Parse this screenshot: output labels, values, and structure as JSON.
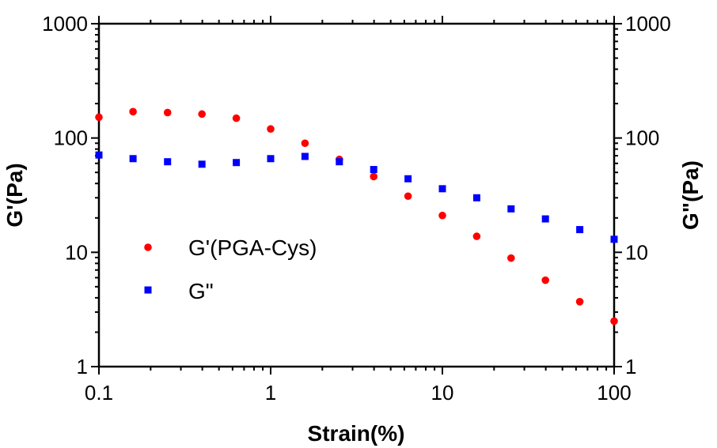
{
  "chart_data": {
    "type": "scatter",
    "xlabel": "Strain(%)",
    "ylabel": "G'(Pa)",
    "ylabel_right": "G\"(Pa)",
    "xscale": "log",
    "yscale": "log",
    "xlim": [
      0.1,
      100
    ],
    "ylim": [
      1,
      1000
    ],
    "x_ticks": [
      "0.1",
      "1",
      "10",
      "100"
    ],
    "y_ticks": [
      "1",
      "10",
      "100",
      "1000"
    ],
    "y_right_ticks": [
      "1",
      "10",
      "100",
      "1000"
    ],
    "grid": false,
    "legend_position": "left-middle",
    "series": [
      {
        "name": "G'(PGA-Cys)",
        "marker": "circle",
        "color": "#ff0000",
        "x": [
          0.1,
          0.158,
          0.251,
          0.398,
          0.631,
          1.0,
          1.585,
          2.512,
          3.981,
          6.31,
          10.0,
          15.85,
          25.12,
          39.81,
          63.1,
          100.0
        ],
        "y": [
          152,
          170,
          167,
          162,
          149,
          120,
          90,
          65,
          46,
          31,
          21,
          13.8,
          8.9,
          5.7,
          3.7,
          2.5
        ]
      },
      {
        "name": "G\"",
        "marker": "square",
        "color": "#0000ff",
        "x": [
          0.1,
          0.158,
          0.251,
          0.398,
          0.631,
          1.0,
          1.585,
          2.512,
          3.981,
          6.31,
          10.0,
          15.85,
          25.12,
          39.81,
          63.1,
          100.0
        ],
        "y": [
          71,
          66,
          62,
          59,
          61,
          66,
          69,
          62,
          53,
          44,
          36,
          30,
          24,
          19.6,
          15.8,
          13
        ]
      }
    ]
  }
}
